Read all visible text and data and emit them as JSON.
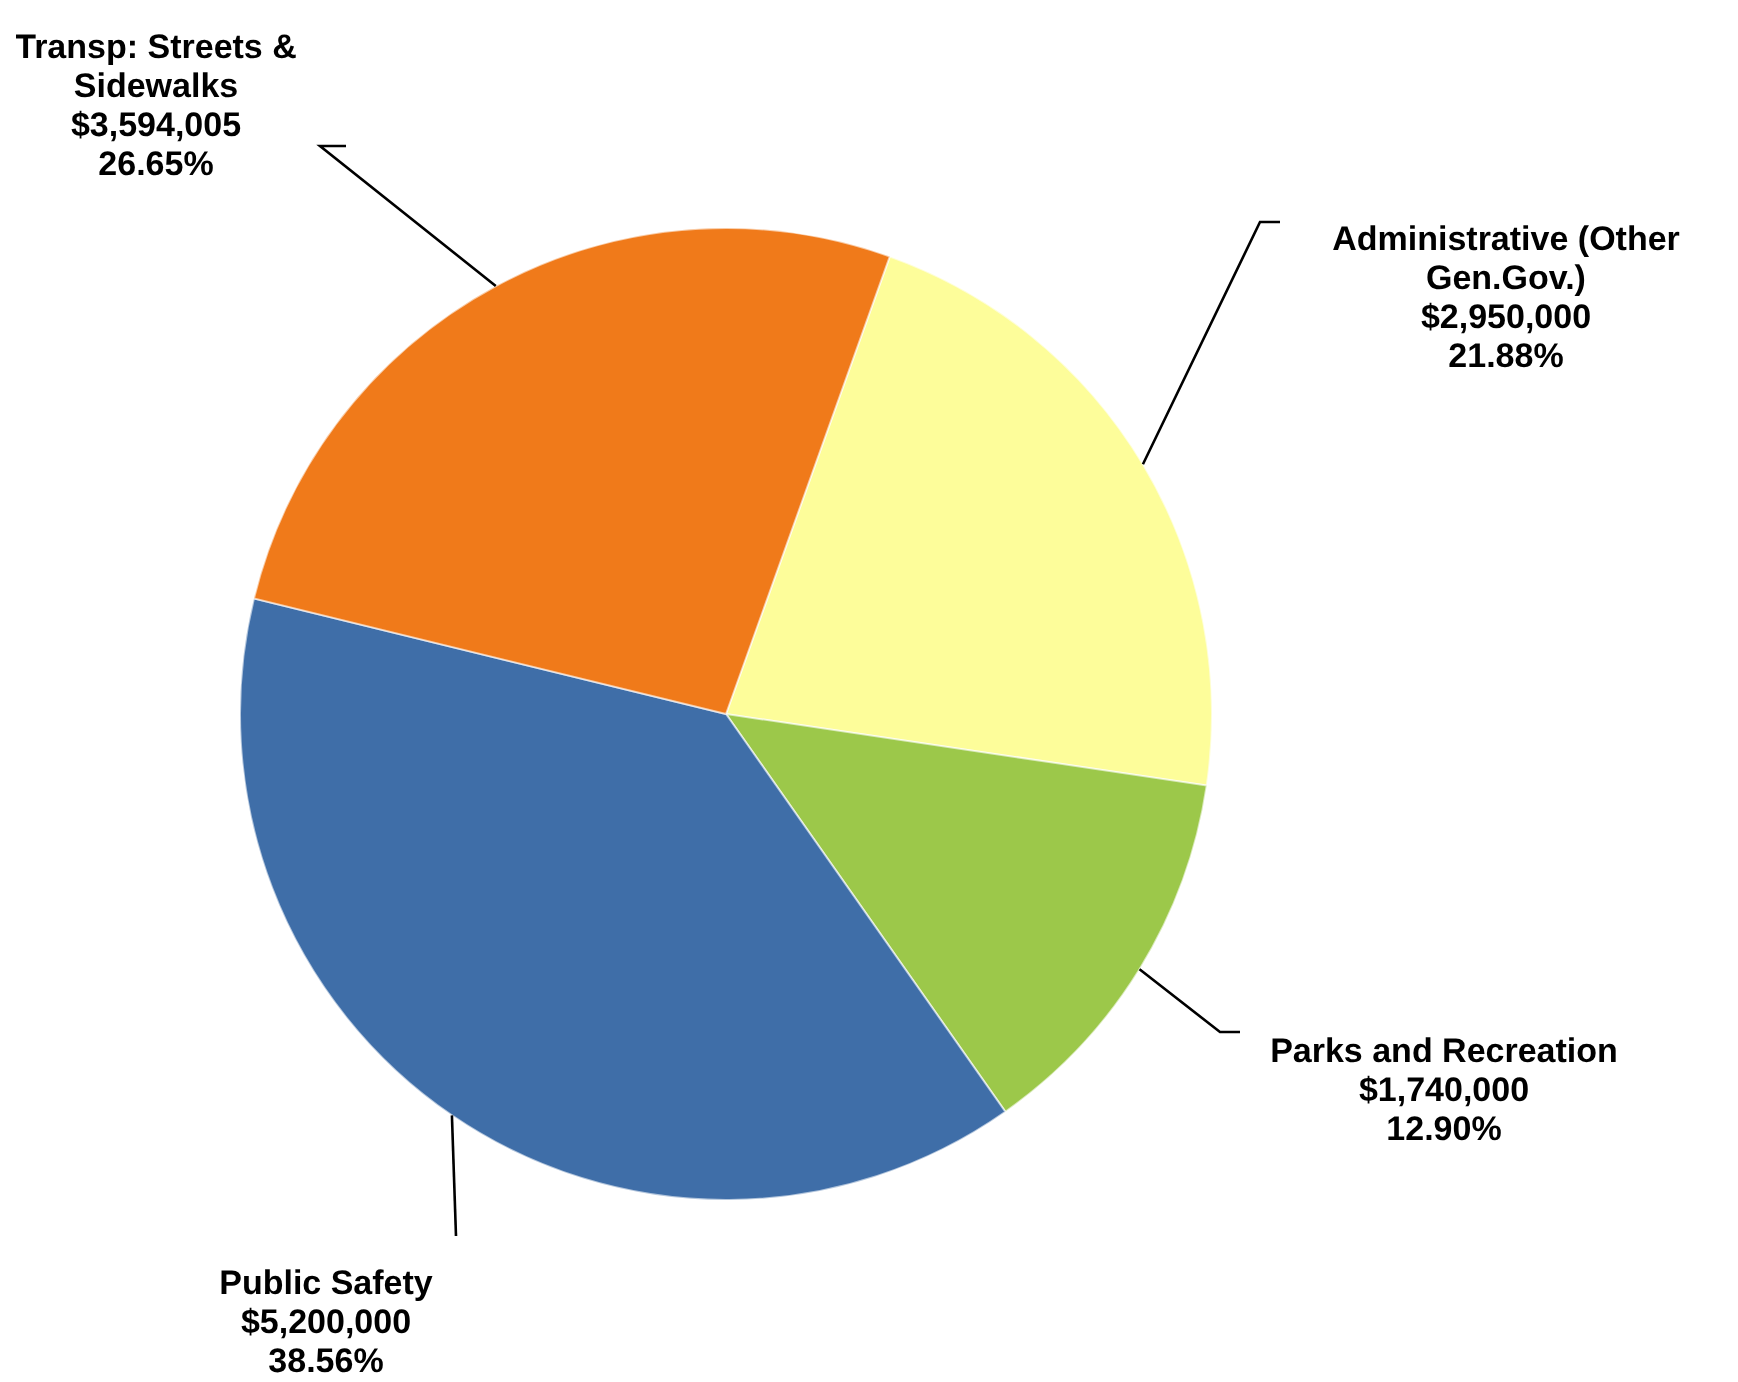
{
  "chart_data": {
    "type": "pie",
    "categories": [
      "Administrative (Other Gen.Gov.)",
      "Parks and Recreation",
      "Public Safety",
      "Transp: Streets & Sidewalks"
    ],
    "values": [
      2950000,
      1740000,
      5200000,
      3594005
    ],
    "value_labels": [
      "$2,950,000\n21.88%",
      "$1,740,000\n12.90%",
      "$5,200,000\n38.56%",
      "$3,594,005\n26.65%"
    ],
    "colors": [
      "#fdfd9a",
      "#9cc84a",
      "#3f6ea8",
      "#f07a1a"
    ]
  }
}
